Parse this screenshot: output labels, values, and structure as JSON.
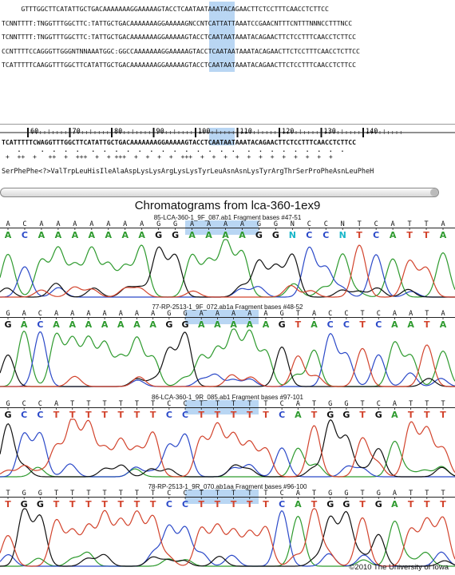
{
  "alignment": {
    "lines": [
      "     GTTTGGCTTCATATTGCTGACAAAAAAAGGAAAAAGTACCTCAATAATAAATACAGAACTTCTCCTTTCAACCTCTTCC",
      "TCNNTTTT:TNGGTTTGGCTTC:TATTGCTGACAAAAAAAGGAAAAAGNCCNTCATTATTAAATCCGAACNTTTCNTTTNNNCCTTTNCC",
      "TCNNTTTT:TNGGTTTGGCTTC:TATTGCTGACAAAAAAAGGAAAAAGTACCTCAATAATAAATACAGAACTTCTCCTTTCAACCTCTTCC",
      "CCNTTTTCCAGGGTTGGGNTNNAAATGGC:GGCCAAAAAAAGGAAAAAGTACCTCAATAATAAATACAGAACTTCTCCTTTCAACCTCTTCC",
      "TCATTTTTCAAGGTTTGGCTTCATATTGCTGACAAAAAAAGGAAAAAGTACCTCAATAATAAATACAGAACTTCTCCTTTCAACCTCTTCC"
    ]
  },
  "ruler": {
    "ticks": [
      "60",
      "70",
      "80",
      "90",
      "100",
      "110",
      "120",
      "130",
      "140"
    ],
    "consensus": "TCATTTTTCWAGGTTTGGCTTCATATTGCTGACAAAAAAAGGAAAAAGTACCTCAATAATAAATACAGAACTTCTCCTTTCAACCTCTTCC",
    "dots1": "    .     .  .  .  .   .  .  .  .  .  .  .  .  .  .  .  .  .   .  .  .  .  .  .  .  .  .",
    "dots2": " +  ++  +   ++  +  +++  +  + +++  +  +  +  +  +++  +  +  +  +  +  +  +  +  +  +  +  +",
    "translation": "SerPhePhe<?>ValTrpLeuHisIleAlaAspLysLysArgLysLysTyrLeuAsnAsnLysTyrArgThrSerProPheAsnLeuPheH"
  },
  "chromatograms": {
    "title": "Chromatograms from lca-360-1ex9",
    "panels": [
      {
        "label": "85-LCA-360-1_9F_087.ab1 Fragment bases #47-51",
        "top_bases": [
          "A",
          "C",
          "A",
          "A",
          "A",
          "A",
          "A",
          "A",
          "A",
          "G",
          "G",
          "A",
          "A",
          "A",
          "A",
          "G",
          "G",
          "N",
          "C",
          "C",
          "N",
          "T",
          "C",
          "A",
          "T",
          "T",
          "A"
        ],
        "called": [
          "A",
          "C",
          "A",
          "A",
          "A",
          "A",
          "A",
          "A",
          "A",
          "G",
          "G",
          "A",
          "A",
          "A",
          "A",
          "G",
          "G",
          "N",
          "C",
          "C",
          "N",
          "T",
          "C",
          "A",
          "T",
          "T",
          "A"
        ]
      },
      {
        "label": "77-RP-2513-1_9F_072.ab1a Fragment bases #48-52",
        "top_bases": [
          "G",
          "A",
          "C",
          "A",
          "A",
          "A",
          "A",
          "A",
          "A",
          "A",
          "G",
          "G",
          "A",
          "A",
          "A",
          "A",
          "A",
          "G",
          "T",
          "A",
          "C",
          "C",
          "T",
          "C",
          "A",
          "A",
          "T",
          "A"
        ],
        "called": [
          "G",
          "A",
          "C",
          "A",
          "A",
          "A",
          "A",
          "A",
          "A",
          "A",
          "G",
          "G",
          "A",
          "A",
          "A",
          "A",
          "A",
          "G",
          "T",
          "A",
          "C",
          "C",
          "T",
          "C",
          "A",
          "A",
          "T",
          "A"
        ]
      },
      {
        "label": "86-LCA-360-1_9R_085.ab1 Fragment bases #97-101",
        "top_bases": [
          "G",
          "C",
          "C",
          "A",
          "T",
          "T",
          "T",
          "T",
          "T",
          "T",
          "C",
          "C",
          "T",
          "T",
          "T",
          "T",
          "T",
          "C",
          "A",
          "T",
          "G",
          "G",
          "T",
          "C",
          "A",
          "T",
          "T",
          "T"
        ],
        "called": [
          "G",
          "C",
          "C",
          "T",
          "T",
          "T",
          "T",
          "T",
          "T",
          "T",
          "C",
          "C",
          "T",
          "T",
          "T",
          "T",
          "T",
          "C",
          "A",
          "T",
          "G",
          "G",
          "T",
          "G",
          "A",
          "T",
          "T",
          "T"
        ]
      },
      {
        "label": "78-RP-2513-1_9R_070.ab1aa Fragment bases #96-100",
        "top_bases": [
          "T",
          "G",
          "G",
          "T",
          "T",
          "T",
          "T",
          "T",
          "T",
          "T",
          "C",
          "C",
          "T",
          "T",
          "T",
          "T",
          "T",
          "C",
          "A",
          "T",
          "G",
          "G",
          "T",
          "G",
          "A",
          "T",
          "T",
          "T"
        ],
        "called": [
          "T",
          "G",
          "G",
          "T",
          "T",
          "T",
          "T",
          "T",
          "T",
          "T",
          "C",
          "C",
          "T",
          "T",
          "T",
          "T",
          "T",
          "C",
          "A",
          "T",
          "G",
          "G",
          "T",
          "G",
          "A",
          "T",
          "T",
          "T"
        ]
      }
    ]
  },
  "colors": {
    "A": "#2e9a2e",
    "C": "#2b49c8",
    "G": "#111111",
    "T": "#d2432c",
    "N": "#19b6c9",
    "highlight": "#b9d6f3"
  },
  "copyright": "©2010 The University of Iowa"
}
